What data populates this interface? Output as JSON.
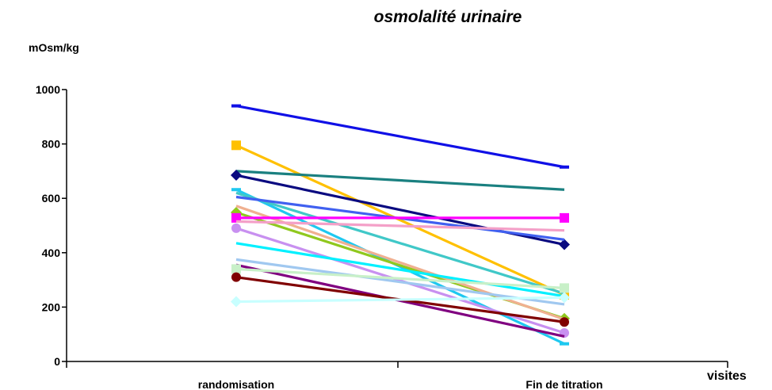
{
  "chart_data": {
    "type": "line",
    "title": "osmolalité urinaire",
    "ylabel": "mOsm/kg",
    "xlabel": "visites",
    "categories": [
      "randomisation",
      "Fin de titration"
    ],
    "ylim": [
      0,
      1000
    ],
    "yticks": [
      0,
      200,
      400,
      600,
      800,
      1000
    ],
    "grid": false,
    "legend": "none",
    "series": [
      {
        "values": [
          940,
          715
        ],
        "color": "#1010e6",
        "marker": "dash"
      },
      {
        "values": [
          795,
          245
        ],
        "color": "#ffc000",
        "marker": "square"
      },
      {
        "values": [
          700,
          632
        ],
        "color": "#1a8080",
        "marker": "none"
      },
      {
        "values": [
          685,
          430
        ],
        "color": "#0a0a80",
        "marker": "diamond"
      },
      {
        "values": [
          632,
          65
        ],
        "color": "#1ec8f0",
        "marker": "dash"
      },
      {
        "values": [
          620,
          250
        ],
        "color": "#40c8c8",
        "marker": "none"
      },
      {
        "values": [
          605,
          448
        ],
        "color": "#4060f0",
        "marker": "none"
      },
      {
        "values": [
          548,
          158
        ],
        "color": "#90c81e",
        "marker": "diamond"
      },
      {
        "values": [
          572,
          155
        ],
        "color": "#f0b090",
        "marker": "none"
      },
      {
        "values": [
          528,
          528
        ],
        "color": "#ff00ff",
        "marker": "square"
      },
      {
        "values": [
          515,
          482
        ],
        "color": "#f4a0c8",
        "marker": "none"
      },
      {
        "values": [
          490,
          105
        ],
        "color": "#c890f0",
        "marker": "circle"
      },
      {
        "values": [
          435,
          240
        ],
        "color": "#00f0ff",
        "marker": "none"
      },
      {
        "values": [
          375,
          210
        ],
        "color": "#a0c8f0",
        "marker": "none"
      },
      {
        "values": [
          355,
          92
        ],
        "color": "#800080",
        "marker": "none"
      },
      {
        "values": [
          340,
          270
        ],
        "color": "#c8f0c8",
        "marker": "square"
      },
      {
        "values": [
          310,
          145
        ],
        "color": "#800000",
        "marker": "circle"
      },
      {
        "values": [
          220,
          235
        ],
        "color": "#c8ffff",
        "marker": "diamond"
      }
    ]
  }
}
